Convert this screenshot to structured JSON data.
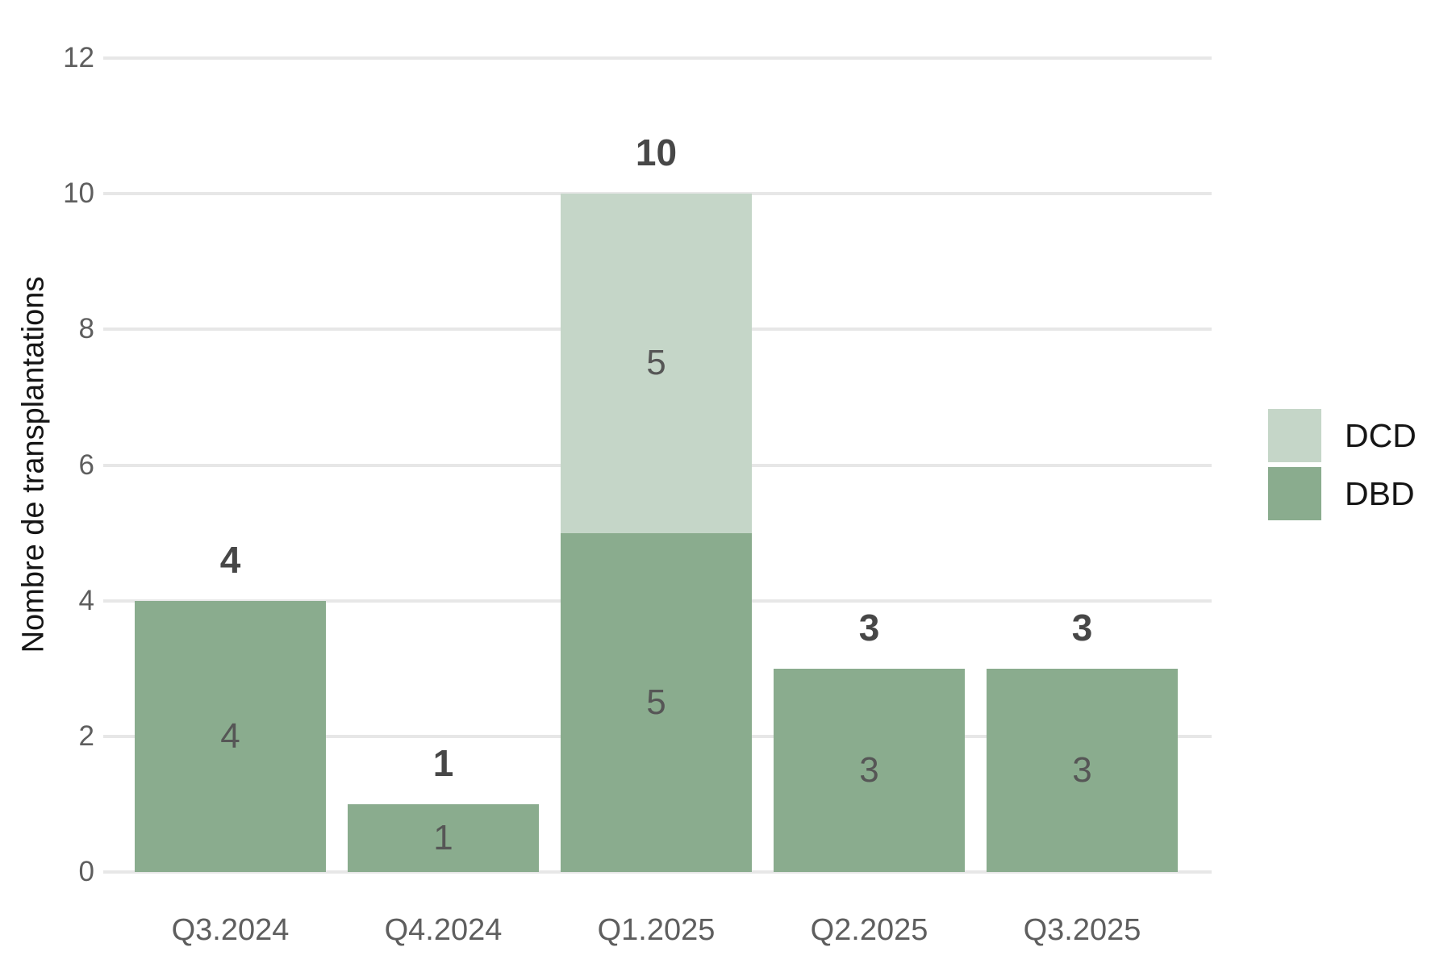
{
  "chart_data": {
    "type": "bar",
    "stacked": true,
    "title": "",
    "categories": [
      "Q3.2024",
      "Q4.2024",
      "Q1.2025",
      "Q2.2025",
      "Q3.2025"
    ],
    "series": [
      {
        "name": "DCD",
        "color": "#c5d6c8",
        "values": [
          0,
          0,
          5,
          0,
          0
        ]
      },
      {
        "name": "DBD",
        "color": "#8aac8e",
        "values": [
          4,
          1,
          5,
          3,
          3
        ]
      }
    ],
    "stack_order_bottom_up": [
      "DBD",
      "DCD"
    ],
    "totals": [
      4,
      1,
      10,
      3,
      3
    ],
    "xlabel": "",
    "ylabel": "Nombre de transplantations",
    "ylim": [
      0,
      12
    ],
    "yticks": [
      0,
      2,
      4,
      6,
      8,
      10,
      12
    ],
    "grid": true,
    "legend_position": "right",
    "colors": {
      "background": "#ffffff",
      "gridline": "#e7e7e7",
      "axis_text": "#5e5e5e",
      "total_label": "#474747",
      "segment_label": "#565656",
      "title_text": "#151515",
      "legend_text": "#151515"
    }
  }
}
